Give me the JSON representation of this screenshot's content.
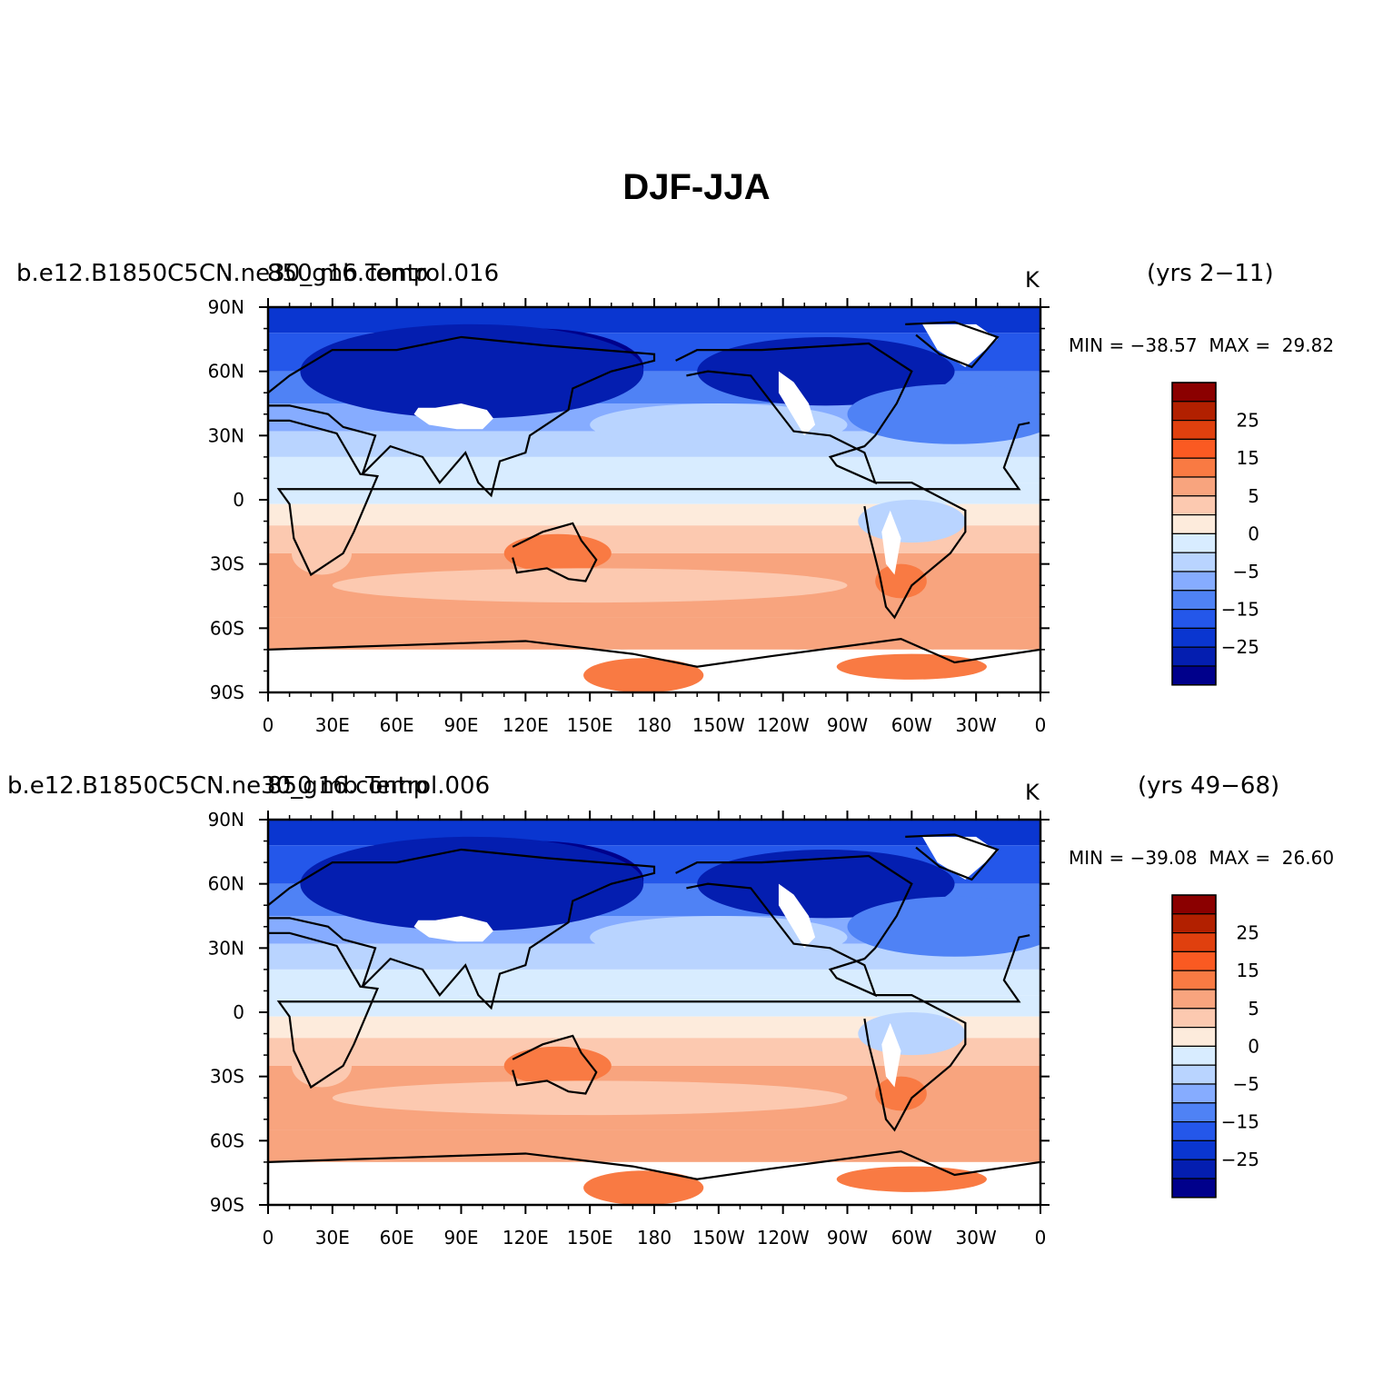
{
  "title": "DJF-JJA",
  "x_ticks": [
    "0",
    "30E",
    "60E",
    "90E",
    "120E",
    "150E",
    "180",
    "150W",
    "120W",
    "90W",
    "60W",
    "30W",
    "0"
  ],
  "y_ticks": [
    "90N",
    "60N",
    "30N",
    "0",
    "30S",
    "60S",
    "90S"
  ],
  "colorbar": {
    "labels": [
      "25",
      "15",
      "5",
      "0",
      "−5",
      "−15",
      "−25"
    ],
    "colors": [
      "#8b0000",
      "#b22000",
      "#e0400e",
      "#fa5a22",
      "#f97a43",
      "#f8a47e",
      "#fcc9b0",
      "#fdebdc",
      "#d8ecff",
      "#b9d4ff",
      "#86acff",
      "#4f82f5",
      "#2457ea",
      "#0a36d0",
      "#041eb0",
      "#00008b"
    ]
  },
  "panels": [
    {
      "case": "b.e12.B1850C5CN.ne30_g16.control.016",
      "variable": "850 mb Temp",
      "units": "K",
      "years": "(yrs 2−11)",
      "minmax": "MIN = −38.57  MAX =  29.82"
    },
    {
      "case": "b.e12.B1850C5CN.ne30_g16.control.006",
      "variable": "850 mb Temp",
      "units": "K",
      "years": "(yrs 49−68)",
      "minmax": "MIN = −39.08  MAX =  26.60"
    }
  ]
}
